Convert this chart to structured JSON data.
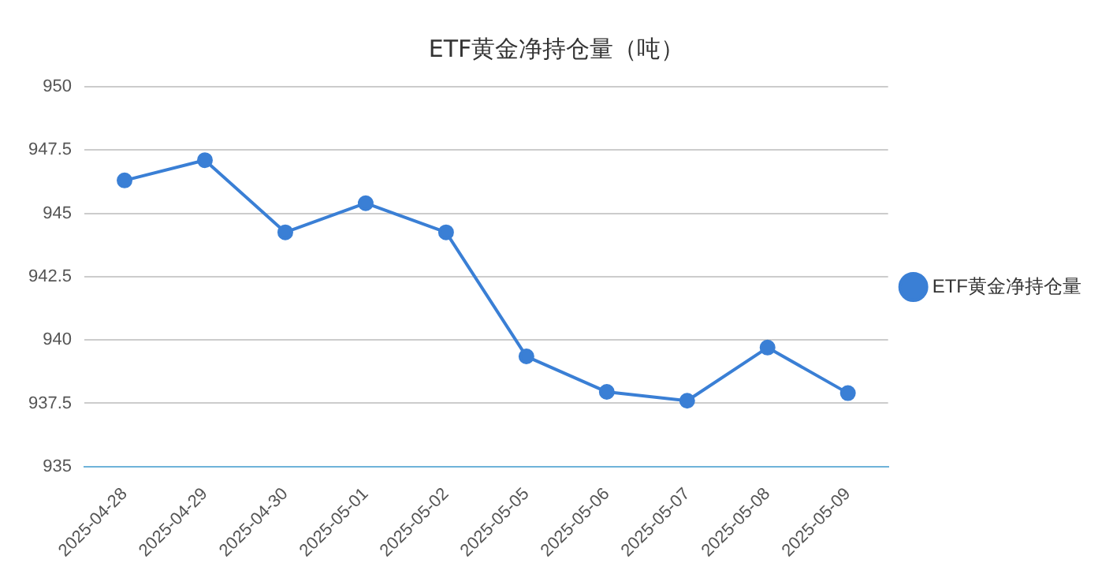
{
  "chart_data": {
    "type": "line",
    "title": "ETF黄金净持仓量（吨）",
    "categories": [
      "2025-04-28",
      "2025-04-29",
      "2025-04-30",
      "2025-05-01",
      "2025-05-02",
      "2025-05-05",
      "2025-05-06",
      "2025-05-07",
      "2025-05-08",
      "2025-05-09"
    ],
    "series": [
      {
        "name": "ETF黄金净持仓量",
        "color": "#3a7fd5",
        "values": [
          946.3,
          947.1,
          944.25,
          945.4,
          944.25,
          939.35,
          937.95,
          937.6,
          939.7,
          937.9
        ]
      }
    ],
    "ylim": [
      935,
      950
    ],
    "yticks": [
      935,
      937.5,
      940,
      942.5,
      945,
      947.5,
      950
    ],
    "grid": "y",
    "legend": "right",
    "marker": "circle",
    "line_style": "solid"
  }
}
